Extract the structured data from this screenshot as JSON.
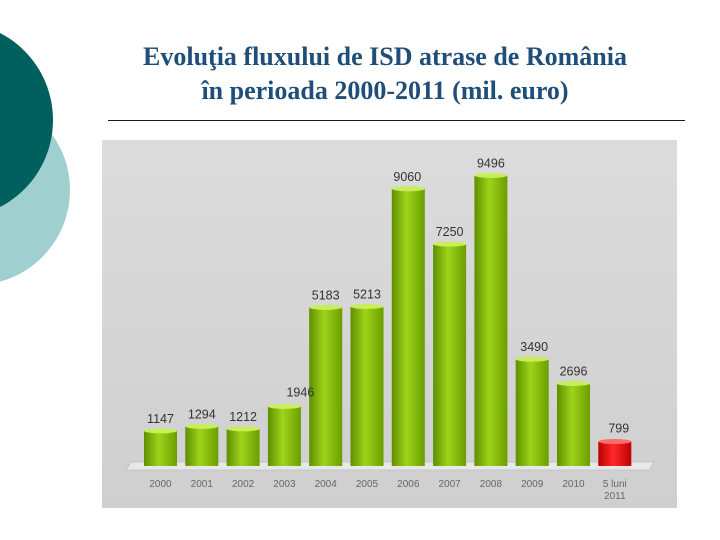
{
  "slide": {
    "title_line1": "Evoluţia fluxului de ISD atrase de România",
    "title_line2": "în perioada 2000-2011 (mil. euro)"
  },
  "colors": {
    "title": "#1f4e79",
    "bar_green": "#7fb800",
    "bar_red": "#e00000",
    "panel": "#d9d9d9",
    "decor_dark": "#00605e",
    "decor_light": "#9fcfcf"
  },
  "chart_data": {
    "type": "bar",
    "categories": [
      "2000",
      "2001",
      "2002",
      "2003",
      "2004",
      "2005",
      "2006",
      "2007",
      "2008",
      "2009",
      "2010",
      "5 luni 2011"
    ],
    "values": [
      1147,
      1294,
      1212,
      1946,
      5183,
      5213,
      9060,
      7250,
      9496,
      3490,
      2696,
      799
    ],
    "value_labels": [
      "1147",
      "1294",
      "1212",
      "1946",
      "5183",
      "5213",
      "9060",
      "7250",
      "9496",
      "3490",
      "2696",
      "799"
    ],
    "highlight_index": 11,
    "title": "",
    "xlabel": "",
    "ylabel": "",
    "ylim": [
      0,
      10000
    ],
    "grid": false,
    "legend": "none"
  }
}
